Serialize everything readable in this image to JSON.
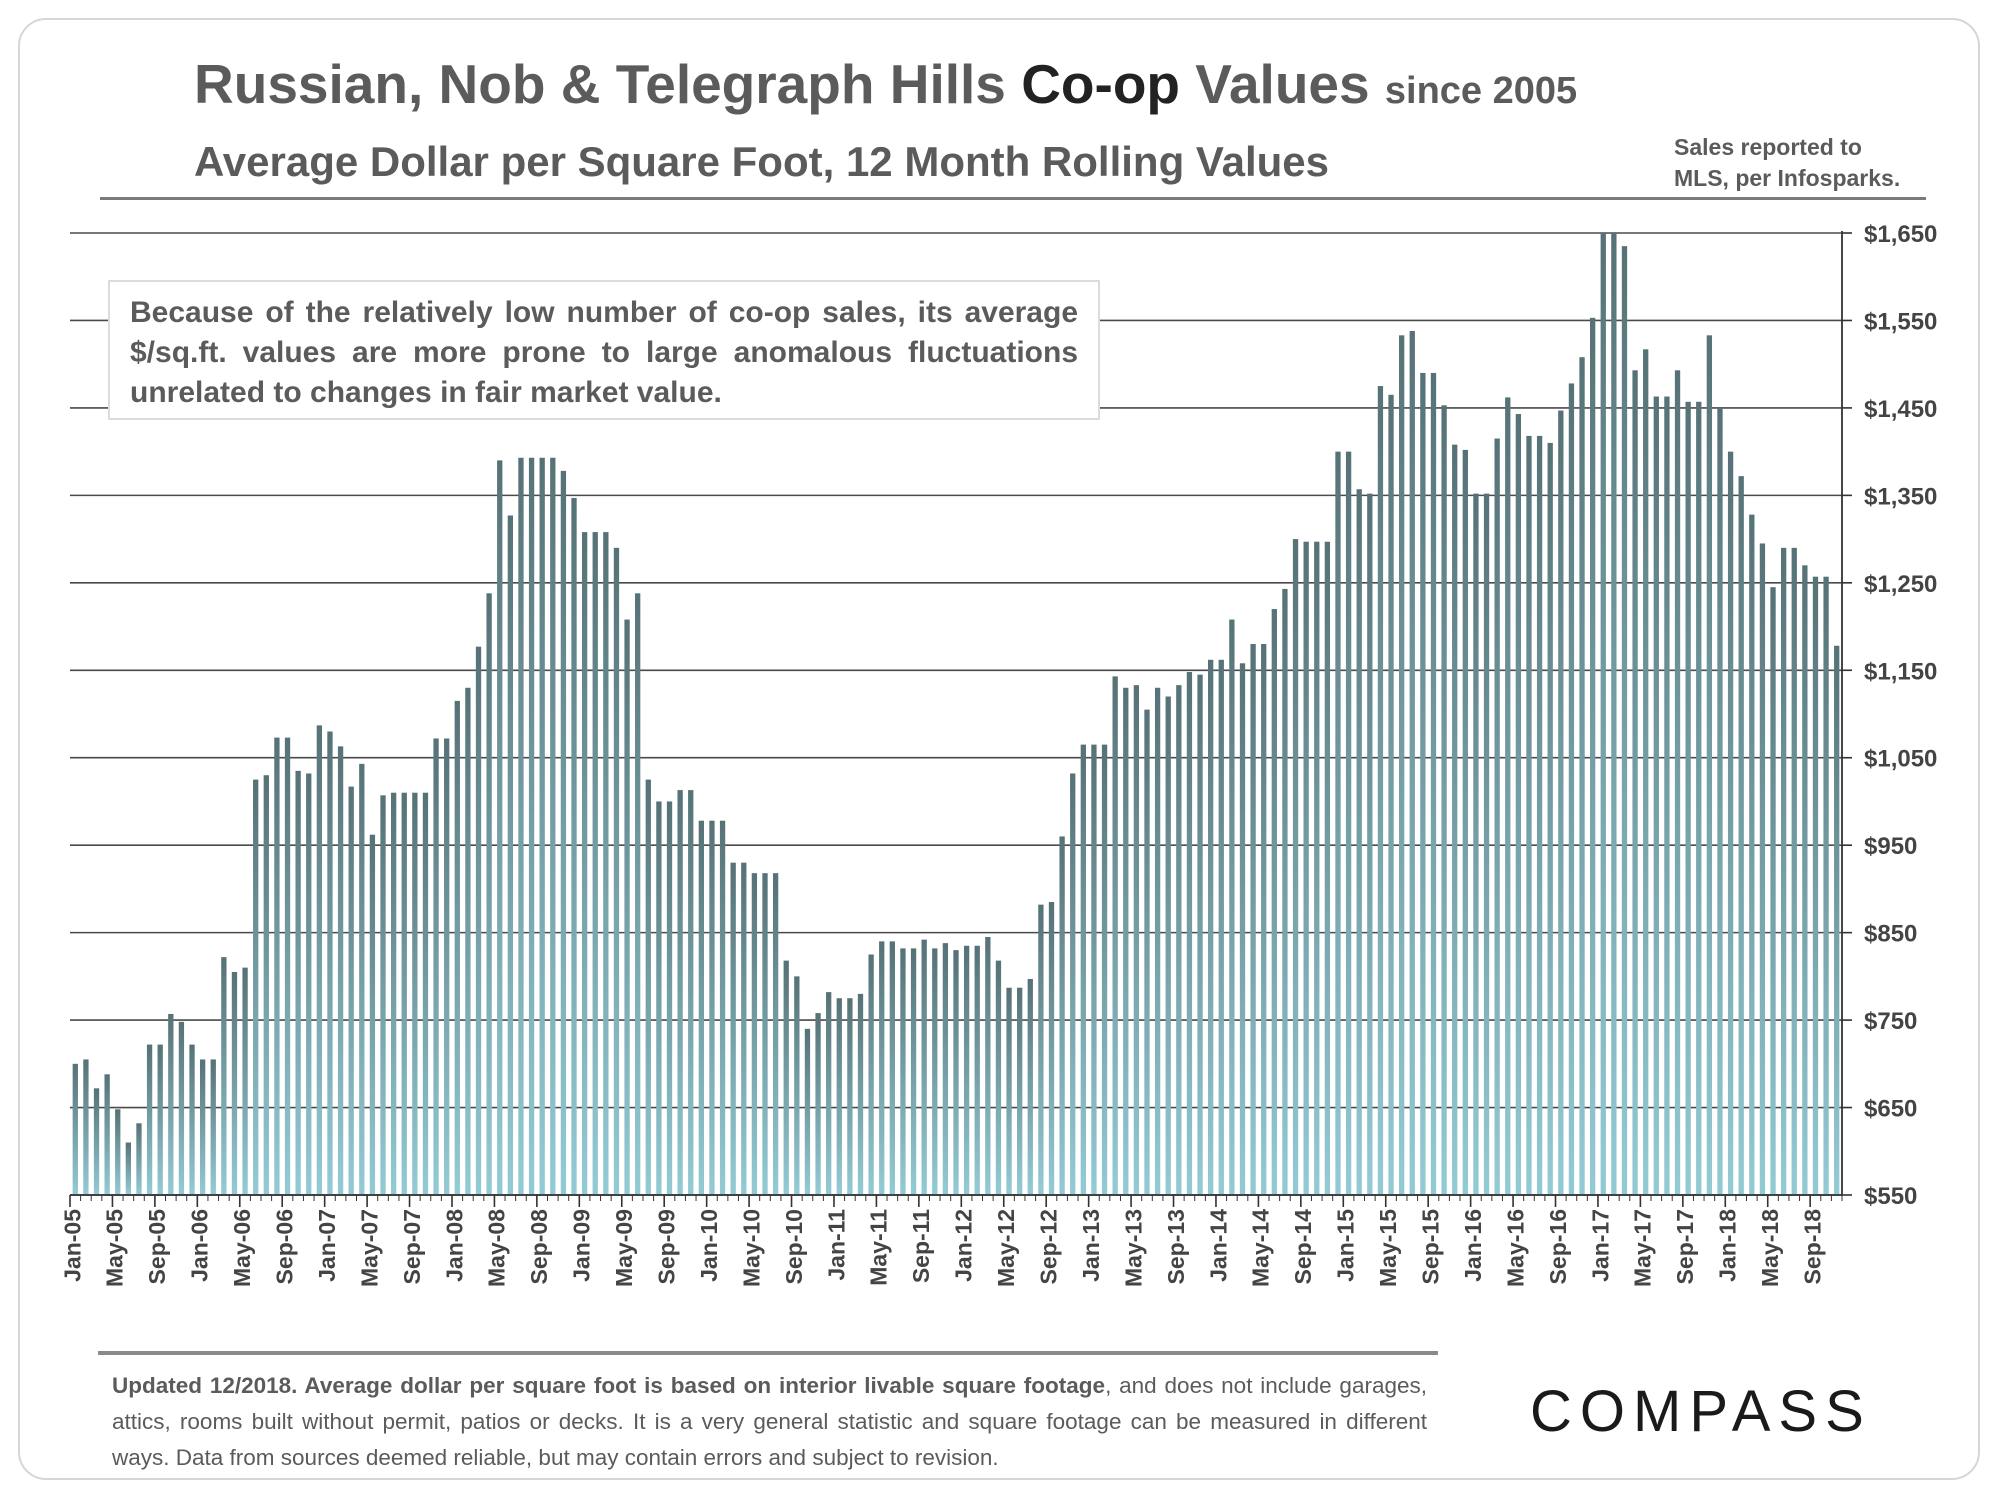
{
  "header": {
    "title_part1": "Russian, Nob & Telegraph Hills",
    "title_part2": "Co-op",
    "title_part3": "Values",
    "title_part4": "since 2005",
    "subtitle": "Average Dollar per Square Foot, 12 Month Rolling Values",
    "source_line1": "Sales reported to",
    "source_line2": "MLS, per Infosparks."
  },
  "note": {
    "text": "Because of the relatively low number of co-op sales, its average $/sq.ft. values are more prone to large anomalous fluctuations unrelated to changes in fair market value."
  },
  "footer": {
    "bold_text": "Updated 12/2018. Average dollar per square foot is based on interior livable square footage",
    "rest_text": ", and does not include garages, attics, rooms built without permit, patios or decks. It is a very general statistic and square footage can be measured in different ways. Data from sources deemed reliable, but may contain errors and subject to revision."
  },
  "logo": {
    "text": "COMPASS"
  },
  "colors": {
    "bar_top": "#567276",
    "bar_bottom": "#93cbd5",
    "grid": "#4a4a4a",
    "text": "#5b5b5b"
  },
  "chart_data": {
    "type": "bar",
    "title": "Russian, Nob & Telegraph Hills Co-op Values since 2005",
    "subtitle": "Average Dollar per Square Foot, 12 Month Rolling Values",
    "xlabel": "",
    "ylabel": "",
    "ylim": [
      550,
      1650
    ],
    "y_ticks": [
      "$550",
      "$650",
      "$750",
      "$850",
      "$950",
      "$1,050",
      "$1,150",
      "$1,250",
      "$1,350",
      "$1,450",
      "$1,550",
      "$1,650"
    ],
    "x_ticks": [
      "Jan-05",
      "May-05",
      "Sep-05",
      "Jan-06",
      "May-06",
      "Sep-06",
      "Jan-07",
      "May-07",
      "Sep-07",
      "Jan-08",
      "May-08",
      "Sep-08",
      "Jan-09",
      "May-09",
      "Sep-09",
      "Jan-10",
      "May-10",
      "Sep-10",
      "Jan-11",
      "May-11",
      "Sep-11",
      "Jan-12",
      "May-12",
      "Sep-12",
      "Jan-13",
      "May-13",
      "Sep-13",
      "Jan-14",
      "May-14",
      "Sep-14",
      "Jan-15",
      "May-15",
      "Sep-15",
      "Jan-16",
      "May-16",
      "Sep-16",
      "Jan-17",
      "May-17",
      "Sep-17",
      "Jan-18",
      "May-18",
      "Sep-18"
    ],
    "start": "Jan-05",
    "values": [
      700,
      705,
      672,
      688,
      648,
      610,
      632,
      722,
      722,
      757,
      748,
      722,
      705,
      705,
      822,
      805,
      810,
      1025,
      1030,
      1073,
      1073,
      1035,
      1032,
      1087,
      1080,
      1063,
      1017,
      1043,
      962,
      1007,
      1010,
      1010,
      1010,
      1010,
      1072,
      1072,
      1115,
      1130,
      1177,
      1238,
      1390,
      1327,
      1393,
      1393,
      1393,
      1393,
      1378,
      1347,
      1308,
      1308,
      1308,
      1290,
      1208,
      1238,
      1025,
      1000,
      1000,
      1013,
      1013,
      978,
      978,
      978,
      930,
      930,
      918,
      918,
      918,
      818,
      800,
      740,
      758,
      782,
      775,
      775,
      780,
      825,
      840,
      840,
      832,
      832,
      842,
      832,
      838,
      830,
      835,
      835,
      845,
      818,
      787,
      787,
      797,
      882,
      885,
      960,
      1032,
      1065,
      1065,
      1065,
      1143,
      1130,
      1133,
      1105,
      1130,
      1120,
      1133,
      1148,
      1145,
      1162,
      1162,
      1208,
      1158,
      1180,
      1180,
      1220,
      1243,
      1300,
      1297,
      1297,
      1297,
      1400,
      1400,
      1357,
      1352,
      1475,
      1465,
      1533,
      1538,
      1490,
      1490,
      1453,
      1408,
      1402,
      1352,
      1352,
      1415,
      1462,
      1443,
      1418,
      1418,
      1410,
      1447,
      1478,
      1508,
      1553,
      1655,
      1660,
      1635,
      1493,
      1517,
      1463,
      1463,
      1493,
      1457,
      1457,
      1533,
      1450,
      1400,
      1372,
      1328,
      1295,
      1245,
      1290,
      1290,
      1270,
      1257,
      1257,
      1178
    ]
  }
}
